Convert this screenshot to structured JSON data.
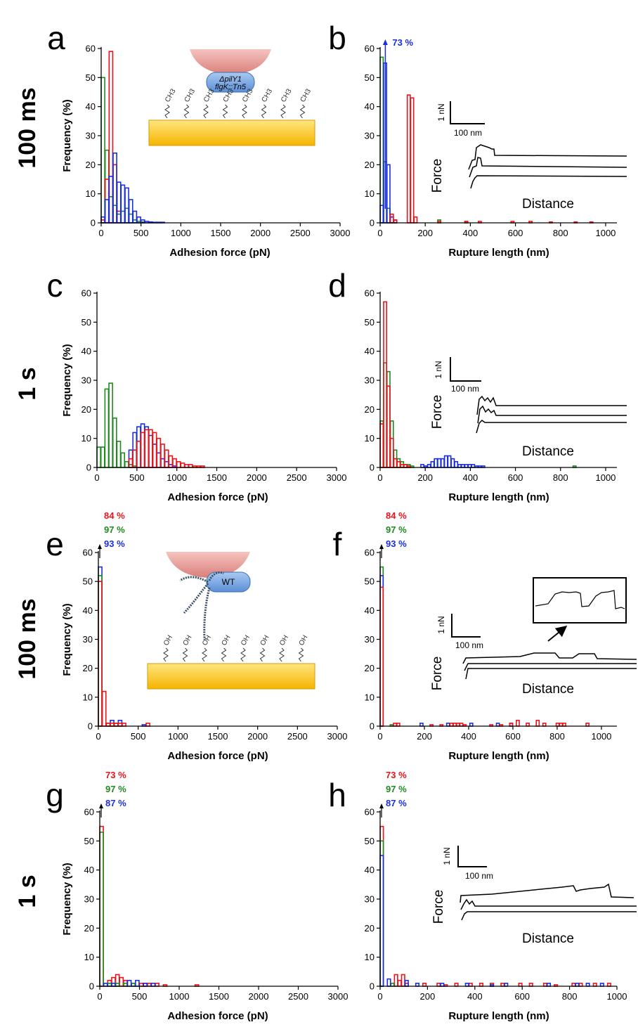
{
  "row_labels": [
    "100 ms",
    "1 s",
    "100 ms",
    "1 s"
  ],
  "colors": {
    "red": "#e8141a",
    "green": "#1e8a1e",
    "blue": "#1a2ee0"
  },
  "inset_labels": {
    "force": "Force",
    "distance": "Distance",
    "scale_force": "1 nN",
    "scale_length": "100 nm"
  },
  "schematic": {
    "strain_a_line1": "ΔpilY1",
    "strain_a_line2": "flgK::Tn5",
    "strain_e": "WT",
    "group_a": "CH3",
    "group_e": "OH"
  },
  "chart_data": [
    {
      "panel": "a",
      "type": "bar",
      "xlabel": "Adhesion force (pN)",
      "ylabel": "Frequency (%)",
      "xlim": [
        0,
        3000
      ],
      "ylim": [
        0,
        60
      ],
      "xticks": [
        0,
        500,
        1000,
        1500,
        2000,
        2500,
        3000
      ],
      "yticks": [
        0,
        10,
        20,
        30,
        40,
        50,
        60
      ],
      "annotations": [],
      "series": [
        {
          "color": "green",
          "x": [
            25,
            75,
            125,
            175,
            225,
            275,
            325,
            375,
            425,
            475,
            525
          ],
          "y": [
            50,
            25,
            9,
            6,
            3,
            4,
            5,
            3,
            1,
            0.5,
            0.3
          ]
        },
        {
          "color": "red",
          "x": [
            25,
            75,
            125,
            175,
            225
          ],
          "y": [
            1,
            15,
            59,
            20,
            4
          ]
        },
        {
          "color": "blue",
          "x": [
            25,
            75,
            125,
            175,
            225,
            275,
            325,
            375,
            425,
            475,
            525,
            575,
            625,
            675,
            725,
            775
          ],
          "y": [
            2,
            8,
            16,
            24,
            14,
            13,
            12,
            8,
            4,
            2,
            1,
            0.5,
            0.3,
            0.2,
            0.2,
            0.2
          ]
        }
      ]
    },
    {
      "panel": "b",
      "type": "bar",
      "xlabel": "Rupture length (nm)",
      "ylabel": "",
      "xlim": [
        0,
        1050
      ],
      "ylim": [
        0,
        60
      ],
      "xticks": [
        0,
        200,
        400,
        600,
        800,
        1000
      ],
      "yticks": [
        0,
        10,
        20,
        30,
        40,
        50,
        60
      ],
      "annotations": [
        {
          "text": "73 %",
          "color": "blue"
        }
      ],
      "series": [
        {
          "color": "green",
          "x": [
            8,
            23,
            38,
            53,
            68,
            263,
            383
          ],
          "y": [
            57,
            21,
            5,
            2,
            1,
            1,
            0.5
          ]
        },
        {
          "color": "blue",
          "x": [
            8,
            23,
            38,
            53,
            68
          ],
          "y": [
            6,
            55,
            20,
            2,
            1
          ]
        },
        {
          "color": "red",
          "x": [
            53,
            68,
            128,
            143,
            158,
            263,
            383,
            443,
            588,
            668,
            758,
            868,
            938
          ],
          "y": [
            3,
            1,
            44,
            43,
            2,
            0.5,
            0.5,
            0.5,
            0.5,
            0.5,
            0.3,
            0.3,
            0.3
          ]
        }
      ]
    },
    {
      "panel": "c",
      "type": "bar",
      "xlabel": "Adhesion force (pN)",
      "ylabel": "Frequency (%)",
      "xlim": [
        0,
        3000
      ],
      "ylim": [
        0,
        60
      ],
      "xticks": [
        0,
        500,
        1000,
        1500,
        2000,
        2500,
        3000
      ],
      "yticks": [
        0,
        10,
        20,
        30,
        40,
        50,
        60
      ],
      "annotations": [],
      "series": [
        {
          "color": "green",
          "x": [
            25,
            75,
            125,
            175,
            225,
            275,
            325,
            375,
            425,
            475
          ],
          "y": [
            7,
            7,
            27,
            29,
            17,
            9,
            5,
            2,
            1,
            0.5
          ]
        },
        {
          "color": "blue",
          "x": [
            425,
            475,
            525,
            575,
            625,
            675,
            725,
            775,
            825,
            875,
            925,
            975
          ],
          "y": [
            6,
            12,
            14,
            15,
            14,
            11,
            8,
            5,
            3,
            2,
            1,
            0.5
          ]
        },
        {
          "color": "red",
          "x": [
            425,
            475,
            525,
            575,
            625,
            675,
            725,
            775,
            825,
            875,
            925,
            975,
            1025,
            1075,
            1125,
            1175,
            1225,
            1275,
            1325
          ],
          "y": [
            3,
            6,
            9,
            12,
            13,
            13,
            12,
            10,
            8,
            6,
            4,
            3,
            2,
            1.5,
            1,
            1,
            0.5,
            0.5,
            0.5
          ]
        }
      ]
    },
    {
      "panel": "d",
      "type": "bar",
      "xlabel": "Rupture length (nm)",
      "ylabel": "",
      "xlim": [
        0,
        1050
      ],
      "ylim": [
        0,
        60
      ],
      "xticks": [
        0,
        200,
        400,
        600,
        800,
        1000
      ],
      "yticks": [
        0,
        10,
        20,
        30,
        40,
        50,
        60
      ],
      "annotations": [],
      "series": [
        {
          "color": "green",
          "x": [
            8,
            23,
            38,
            53,
            68,
            83,
            98,
            113,
            128,
            143,
            863
          ],
          "y": [
            16,
            36,
            33,
            16,
            6,
            3,
            2,
            1,
            1,
            0.5,
            0.5
          ]
        },
        {
          "color": "red",
          "x": [
            8,
            23,
            38,
            53,
            68,
            83,
            98,
            113,
            128
          ],
          "y": [
            15,
            57,
            28,
            10,
            3,
            2,
            1,
            1,
            0.5
          ]
        },
        {
          "color": "blue",
          "x": [
            188,
            203,
            218,
            233,
            248,
            263,
            278,
            293,
            308,
            323,
            338,
            353,
            368,
            383,
            398,
            413,
            428,
            443,
            458
          ],
          "y": [
            1,
            0.5,
            1,
            2,
            3,
            3,
            3,
            4,
            4,
            3,
            2,
            1,
            1,
            1,
            1,
            1,
            0.5,
            0.5,
            0.5
          ]
        }
      ]
    },
    {
      "panel": "e",
      "type": "bar",
      "xlabel": "Adhesion force (pN)",
      "ylabel": "Frequency (%)",
      "xlim": [
        0,
        3000
      ],
      "ylim": [
        0,
        60
      ],
      "xticks": [
        0,
        500,
        1000,
        1500,
        2000,
        2500,
        3000
      ],
      "yticks": [
        0,
        10,
        20,
        30,
        40,
        50,
        60
      ],
      "annotations": [
        {
          "text": "84 %",
          "color": "red"
        },
        {
          "text": "97 %",
          "color": "green"
        },
        {
          "text": "93 %",
          "color": "blue"
        }
      ],
      "series": [
        {
          "color": "blue",
          "x": [
            25,
            175,
            275,
            575
          ],
          "y": [
            55,
            2,
            2,
            0.5
          ]
        },
        {
          "color": "green",
          "x": [
            25,
            125,
            225
          ],
          "y": [
            52,
            1,
            1
          ]
        },
        {
          "color": "red",
          "x": [
            25,
            75,
            125,
            175,
            225,
            275,
            325,
            625
          ],
          "y": [
            50,
            12,
            1,
            1,
            1,
            1,
            1,
            1
          ]
        }
      ]
    },
    {
      "panel": "f",
      "type": "bar",
      "xlabel": "Rupture length (nm)",
      "ylabel": "",
      "xlim": [
        0,
        1070
      ],
      "ylim": [
        0,
        60
      ],
      "xticks": [
        0,
        200,
        400,
        600,
        800,
        1000
      ],
      "yticks": [
        0,
        10,
        20,
        30,
        40,
        50,
        60
      ],
      "annotations": [
        {
          "text": "84 %",
          "color": "red"
        },
        {
          "text": "97 %",
          "color": "green"
        },
        {
          "text": "93 %",
          "color": "blue"
        }
      ],
      "series": [
        {
          "color": "green",
          "x": [
            8,
            53
          ],
          "y": [
            55,
            0.5
          ]
        },
        {
          "color": "blue",
          "x": [
            8,
            188,
            308,
            413,
            533,
            593
          ],
          "y": [
            52,
            1,
            1,
            1,
            1,
            1
          ]
        },
        {
          "color": "red",
          "x": [
            8,
            68,
            83,
            233,
            278,
            323,
            338,
            353,
            368,
            383,
            503,
            548,
            593,
            623,
            668,
            713,
            743,
            803,
            818,
            833,
            938
          ],
          "y": [
            48,
            1,
            1,
            0.5,
            0.5,
            1,
            1,
            1,
            1,
            0.5,
            0.5,
            0.5,
            1,
            2,
            1,
            2,
            1,
            1,
            1,
            1,
            1
          ]
        }
      ]
    },
    {
      "panel": "g",
      "type": "bar",
      "xlabel": "Adhesion force (pN)",
      "ylabel": "Frequency (%)",
      "xlim": [
        0,
        3000
      ],
      "ylim": [
        0,
        60
      ],
      "xticks": [
        0,
        500,
        1000,
        1500,
        2000,
        2500,
        3000
      ],
      "yticks": [
        0,
        10,
        20,
        30,
        40,
        50,
        60
      ],
      "annotations": [
        {
          "text": "73 %",
          "color": "red"
        },
        {
          "text": "97 %",
          "color": "green"
        },
        {
          "text": "87 %",
          "color": "blue"
        }
      ],
      "series": [
        {
          "color": "red",
          "x": [
            25,
            125,
            175,
            225,
            275,
            325,
            425,
            525,
            575,
            625,
            725,
            825,
            1225
          ],
          "y": [
            55,
            2,
            3,
            4,
            3,
            2,
            1,
            1,
            1,
            1,
            1,
            0.5,
            0.5
          ]
        },
        {
          "color": "green",
          "x": [
            25,
            125,
            225,
            325,
            425
          ],
          "y": [
            53,
            1,
            1,
            1,
            1
          ]
        },
        {
          "color": "blue",
          "x": [
            75,
            175,
            375,
            475,
            575,
            675
          ],
          "y": [
            1,
            1,
            2,
            2,
            1,
            1
          ]
        }
      ]
    },
    {
      "panel": "h",
      "type": "bar",
      "xlabel": "Rupture length (nm)",
      "ylabel": "",
      "xlim": [
        0,
        1000
      ],
      "ylim": [
        0,
        60
      ],
      "xticks": [
        0,
        200,
        400,
        600,
        800,
        1000
      ],
      "yticks": [
        0,
        10,
        20,
        30,
        40,
        50,
        60
      ],
      "annotations": [
        {
          "text": "73 %",
          "color": "red"
        },
        {
          "text": "97 %",
          "color": "green"
        },
        {
          "text": "87 %",
          "color": "blue"
        }
      ],
      "series": [
        {
          "color": "red",
          "x": [
            8,
            68,
            83,
            98,
            113,
            188,
            248,
            278,
            323,
            383,
            428,
            473,
            518,
            593,
            638,
            698,
            743,
            818,
            848,
            908,
            968
          ],
          "y": [
            55,
            4,
            2,
            4,
            1,
            1,
            1,
            0.5,
            1,
            1,
            1,
            1,
            1,
            1,
            1,
            1,
            0.5,
            1,
            1,
            1,
            1
          ]
        },
        {
          "color": "green",
          "x": [
            8,
            53
          ],
          "y": [
            50,
            1
          ]
        },
        {
          "color": "blue",
          "x": [
            8,
            38,
            113,
            158,
            263,
            368,
            473,
            533,
            713,
            833,
            878,
            938
          ],
          "y": [
            45,
            2.5,
            2,
            1,
            1,
            1,
            0.5,
            1,
            1,
            1,
            1,
            1
          ]
        }
      ]
    }
  ]
}
